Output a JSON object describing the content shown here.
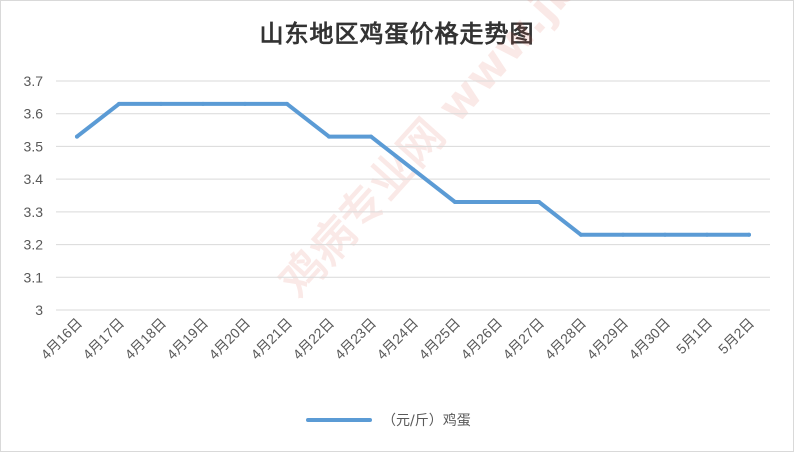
{
  "chart_data": {
    "type": "line",
    "title": "山东地区鸡蛋价格走势图",
    "categories": [
      "4月16日",
      "4月17日",
      "4月18日",
      "4月19日",
      "4月20日",
      "4月21日",
      "4月22日",
      "4月23日",
      "4月24日",
      "4月25日",
      "4月26日",
      "4月27日",
      "4月28日",
      "4月29日",
      "4月30日",
      "5月1日",
      "5月2日"
    ],
    "series": [
      {
        "name": "（元/斤）鸡蛋",
        "color": "#5b9bd5",
        "values": [
          3.53,
          3.63,
          3.63,
          3.63,
          3.63,
          3.63,
          3.53,
          3.53,
          3.43,
          3.33,
          3.33,
          3.33,
          3.23,
          3.23,
          3.23,
          3.23,
          3.23
        ]
      }
    ],
    "y_ticks": [
      "3.7",
      "3.6",
      "3.5",
      "3.4",
      "3.3",
      "3.2",
      "3.1",
      "3"
    ],
    "ylim": [
      3,
      3.7
    ],
    "grid": true,
    "legend_position": "bottom",
    "watermark": "鸡病专业网 www.jbzyw.com"
  }
}
